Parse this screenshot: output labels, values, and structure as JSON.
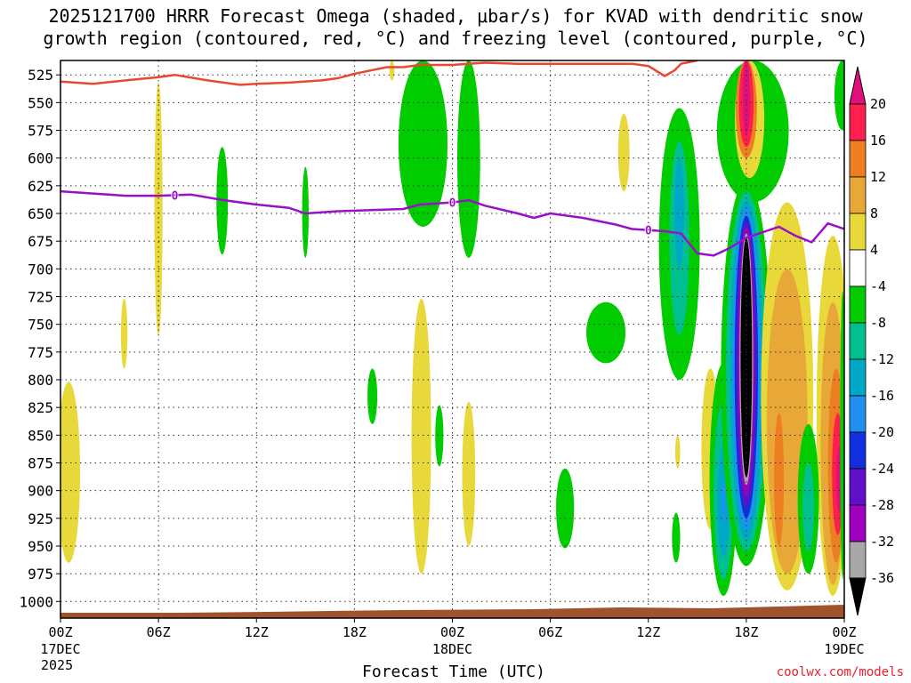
{
  "chart_data": {
    "type": "heatmap",
    "title_line1": "2025121700 HRRR Forecast Omega (shaded, μbar/s) for KVAD with dendritic snow",
    "title_line2": "growth region (contoured, red, °C) and freezing level (contoured, purple, °C)",
    "xlabel": "Forecast Time (UTC)",
    "credit": "coolwx.com/models",
    "x_hours_range": [
      0,
      48
    ],
    "x_ticks": [
      {
        "hour": 0,
        "label": "00Z",
        "sub": "17DEC",
        "sub2": "2025"
      },
      {
        "hour": 6,
        "label": "06Z",
        "sub": "",
        "sub2": ""
      },
      {
        "hour": 12,
        "label": "12Z",
        "sub": "",
        "sub2": ""
      },
      {
        "hour": 18,
        "label": "18Z",
        "sub": "",
        "sub2": ""
      },
      {
        "hour": 24,
        "label": "00Z",
        "sub": "18DEC",
        "sub2": ""
      },
      {
        "hour": 30,
        "label": "06Z",
        "sub": "",
        "sub2": ""
      },
      {
        "hour": 36,
        "label": "12Z",
        "sub": "",
        "sub2": ""
      },
      {
        "hour": 42,
        "label": "18Z",
        "sub": "",
        "sub2": ""
      },
      {
        "hour": 48,
        "label": "00Z",
        "sub": "19DEC",
        "sub2": ""
      }
    ],
    "y_range_mb": [
      1015,
      512
    ],
    "y_ticks": [
      525,
      550,
      575,
      600,
      625,
      650,
      675,
      700,
      725,
      750,
      775,
      800,
      825,
      850,
      875,
      900,
      925,
      950,
      975,
      1000
    ],
    "colorbar": {
      "top_label": "20",
      "labels": [
        "16",
        "12",
        "8",
        "4",
        "-4",
        "-8",
        "-12",
        "-16",
        "-20",
        "-24",
        "-28",
        "-32",
        "-36"
      ],
      "colors": [
        "#ff1f4e",
        "#ee7e22",
        "#e8a838",
        "#e8d83a",
        "#ffffff",
        "#00cc00",
        "#00c090",
        "#00a8c8",
        "#2090f0",
        "#1030e0",
        "#6010c8",
        "#a000c0",
        "#a8a8a8"
      ],
      "top_arrow": "#e0107a",
      "bottom_arrow": "#000000"
    },
    "freezing_level": {
      "color": "#9a10c8",
      "label": "0",
      "points": [
        [
          0,
          630
        ],
        [
          2,
          632
        ],
        [
          4,
          634
        ],
        [
          6,
          634
        ],
        [
          8,
          633
        ],
        [
          10,
          638
        ],
        [
          12,
          642
        ],
        [
          14,
          645
        ],
        [
          15,
          650
        ],
        [
          17,
          648
        ],
        [
          19,
          647
        ],
        [
          21,
          646
        ],
        [
          22,
          642
        ],
        [
          24,
          640
        ],
        [
          25,
          638
        ],
        [
          26,
          643
        ],
        [
          28,
          650
        ],
        [
          29,
          654
        ],
        [
          30,
          650
        ],
        [
          32,
          654
        ],
        [
          34,
          660
        ],
        [
          35,
          664
        ],
        [
          36,
          665
        ],
        [
          37,
          666
        ],
        [
          38,
          668
        ],
        [
          39,
          686
        ],
        [
          40,
          688
        ],
        [
          41,
          681
        ],
        [
          42,
          672
        ],
        [
          43,
          667
        ],
        [
          44,
          662
        ],
        [
          45,
          670
        ],
        [
          46,
          676
        ],
        [
          47,
          659
        ],
        [
          48,
          664
        ]
      ],
      "label_hours": [
        7,
        24,
        36
      ]
    },
    "dgz_contour": {
      "color": "#e84830",
      "points": [
        [
          0,
          531
        ],
        [
          2,
          533
        ],
        [
          4,
          530
        ],
        [
          6,
          527
        ],
        [
          7,
          525
        ],
        [
          9,
          530
        ],
        [
          11,
          534
        ],
        [
          12,
          533
        ],
        [
          14,
          532
        ],
        [
          16,
          530
        ],
        [
          17,
          528
        ],
        [
          18,
          524
        ],
        [
          19,
          521
        ],
        [
          20,
          518
        ],
        [
          21,
          518
        ],
        [
          22,
          516
        ],
        [
          24,
          516
        ],
        [
          26,
          514
        ],
        [
          28,
          515
        ],
        [
          30,
          515
        ],
        [
          32,
          515
        ],
        [
          34,
          515
        ],
        [
          35,
          515
        ],
        [
          36,
          517
        ],
        [
          37,
          526
        ],
        [
          37.6,
          521
        ],
        [
          38,
          515
        ],
        [
          39,
          512
        ]
      ]
    },
    "omega_blobs": [
      {
        "hour": 0.5,
        "p_top": 802,
        "p_bot": 965,
        "half_width_h": 0.7,
        "color": "#e8d83a"
      },
      {
        "hour": 3.9,
        "p_top": 727,
        "p_bot": 790,
        "half_width_h": 0.2,
        "color": "#e8d83a"
      },
      {
        "hour": 6,
        "p_top": 532,
        "p_bot": 760,
        "half_width_h": 0.25,
        "color": "#e8d83a"
      },
      {
        "hour": 9.9,
        "p_top": 590,
        "p_bot": 687,
        "half_width_h": 0.35,
        "color": "#00cc00"
      },
      {
        "hour": 15,
        "p_top": 608,
        "p_bot": 690,
        "half_width_h": 0.2,
        "color": "#00cc00"
      },
      {
        "hour": 20.3,
        "p_top": 512,
        "p_bot": 530,
        "half_width_h": 0.15,
        "color": "#e8d83a"
      },
      {
        "hour": 22.2,
        "p_top": 512,
        "p_bot": 662,
        "half_width_h": 1.5,
        "color": "#00cc00"
      },
      {
        "hour": 22.1,
        "p_top": 727,
        "p_bot": 975,
        "half_width_h": 0.6,
        "color": "#e8d83a"
      },
      {
        "hour": 19.1,
        "p_top": 790,
        "p_bot": 840,
        "half_width_h": 0.3,
        "color": "#00cc00"
      },
      {
        "hour": 23.2,
        "p_top": 823,
        "p_bot": 878,
        "half_width_h": 0.25,
        "color": "#00cc00"
      },
      {
        "hour": 25,
        "p_top": 512,
        "p_bot": 690,
        "half_width_h": 0.7,
        "color": "#00cc00"
      },
      {
        "hour": 25,
        "p_top": 820,
        "p_bot": 950,
        "half_width_h": 0.4,
        "color": "#e8d83a"
      },
      {
        "hour": 30.9,
        "p_top": 880,
        "p_bot": 952,
        "half_width_h": 0.55,
        "color": "#00cc00"
      },
      {
        "hour": 34.5,
        "p_top": 560,
        "p_bot": 630,
        "half_width_h": 0.35,
        "color": "#e8d83a"
      },
      {
        "hour": 33.4,
        "p_top": 730,
        "p_bot": 785,
        "half_width_h": 1.2,
        "color": "#00cc00"
      },
      {
        "hour": 37.9,
        "p_top": 555,
        "p_bot": 800,
        "half_width_h": 1.25,
        "color": "#00cc00"
      },
      {
        "hour": 37.9,
        "p_top": 585,
        "p_bot": 760,
        "half_width_h": 0.6,
        "color": "#00c090"
      },
      {
        "hour": 37.9,
        "p_top": 600,
        "p_bot": 700,
        "half_width_h": 0.3,
        "color": "#00a8c8"
      },
      {
        "hour": 37.8,
        "p_top": 850,
        "p_bot": 880,
        "half_width_h": 0.15,
        "color": "#e8d83a"
      },
      {
        "hour": 37.7,
        "p_top": 920,
        "p_bot": 965,
        "half_width_h": 0.25,
        "color": "#00cc00"
      },
      {
        "hour": 39.8,
        "p_top": 790,
        "p_bot": 935,
        "half_width_h": 0.55,
        "color": "#e8d83a"
      },
      {
        "hour": 40.6,
        "p_top": 785,
        "p_bot": 995,
        "half_width_h": 0.85,
        "color": "#00cc00"
      },
      {
        "hour": 40.6,
        "p_top": 820,
        "p_bot": 980,
        "half_width_h": 0.6,
        "color": "#00c090"
      },
      {
        "hour": 40.6,
        "p_top": 860,
        "p_bot": 960,
        "half_width_h": 0.38,
        "color": "#00a8c8"
      },
      {
        "hour": 40.6,
        "p_top": 890,
        "p_bot": 930,
        "half_width_h": 0.1,
        "color": "#2090f0"
      },
      {
        "hour": 42.4,
        "p_top": 512,
        "p_bot": 640,
        "half_width_h": 2.2,
        "color": "#00cc00"
      },
      {
        "hour": 42.2,
        "p_top": 512,
        "p_bot": 618,
        "half_width_h": 0.9,
        "color": "#e8d83a"
      },
      {
        "hour": 42.0,
        "p_top": 512,
        "p_bot": 600,
        "half_width_h": 0.65,
        "color": "#ee7e22"
      },
      {
        "hour": 42.0,
        "p_top": 512,
        "p_bot": 590,
        "half_width_h": 0.45,
        "color": "#ff1f4e"
      },
      {
        "hour": 42.0,
        "p_top": 512,
        "p_bot": 580,
        "half_width_h": 0.22,
        "color": "#e0107a"
      },
      {
        "hour": 42.0,
        "p_top": 620,
        "p_bot": 968,
        "half_width_h": 1.55,
        "color": "#00cc00"
      },
      {
        "hour": 42.0,
        "p_top": 630,
        "p_bot": 955,
        "half_width_h": 1.25,
        "color": "#00c090"
      },
      {
        "hour": 42.0,
        "p_top": 638,
        "p_bot": 945,
        "half_width_h": 1.0,
        "color": "#00a8c8"
      },
      {
        "hour": 42.0,
        "p_top": 645,
        "p_bot": 935,
        "half_width_h": 0.85,
        "color": "#2090f0"
      },
      {
        "hour": 42.0,
        "p_top": 652,
        "p_bot": 925,
        "half_width_h": 0.72,
        "color": "#1030e0"
      },
      {
        "hour": 42.0,
        "p_top": 658,
        "p_bot": 915,
        "half_width_h": 0.6,
        "color": "#6010c8"
      },
      {
        "hour": 42.0,
        "p_top": 662,
        "p_bot": 905,
        "half_width_h": 0.5,
        "color": "#a000c0"
      },
      {
        "hour": 42.0,
        "p_top": 668,
        "p_bot": 895,
        "half_width_h": 0.42,
        "color": "#a8a8a8"
      },
      {
        "hour": 42.0,
        "p_top": 672,
        "p_bot": 888,
        "half_width_h": 0.35,
        "color": "#000000"
      },
      {
        "hour": 44.5,
        "p_top": 640,
        "p_bot": 990,
        "half_width_h": 1.6,
        "color": "#e8d83a"
      },
      {
        "hour": 44.5,
        "p_top": 700,
        "p_bot": 975,
        "half_width_h": 1.25,
        "color": "#e8a838"
      },
      {
        "hour": 44.0,
        "p_top": 830,
        "p_bot": 950,
        "half_width_h": 0.3,
        "color": "#ee7e22"
      },
      {
        "hour": 47.3,
        "p_top": 670,
        "p_bot": 995,
        "half_width_h": 1.0,
        "color": "#e8d83a"
      },
      {
        "hour": 47.3,
        "p_top": 730,
        "p_bot": 985,
        "half_width_h": 0.75,
        "color": "#e8a838"
      },
      {
        "hour": 47.5,
        "p_top": 790,
        "p_bot": 965,
        "half_width_h": 0.5,
        "color": "#ee7e22"
      },
      {
        "hour": 47.6,
        "p_top": 830,
        "p_bot": 940,
        "half_width_h": 0.35,
        "color": "#ff1f4e"
      },
      {
        "hour": 47.7,
        "p_top": 860,
        "p_bot": 920,
        "half_width_h": 0.2,
        "color": "#e0107a"
      },
      {
        "hour": 45.8,
        "p_top": 840,
        "p_bot": 975,
        "half_width_h": 0.65,
        "color": "#00cc00"
      },
      {
        "hour": 45.8,
        "p_top": 875,
        "p_bot": 955,
        "half_width_h": 0.35,
        "color": "#00c090"
      },
      {
        "hour": 47.9,
        "p_top": 512,
        "p_bot": 575,
        "half_width_h": 0.5,
        "color": "#00cc00"
      },
      {
        "hour": 47.9,
        "p_top": 720,
        "p_bot": 980,
        "half_width_h": 0.15,
        "color": "#00cc00"
      }
    ],
    "terrain_color": "#a0522d"
  }
}
